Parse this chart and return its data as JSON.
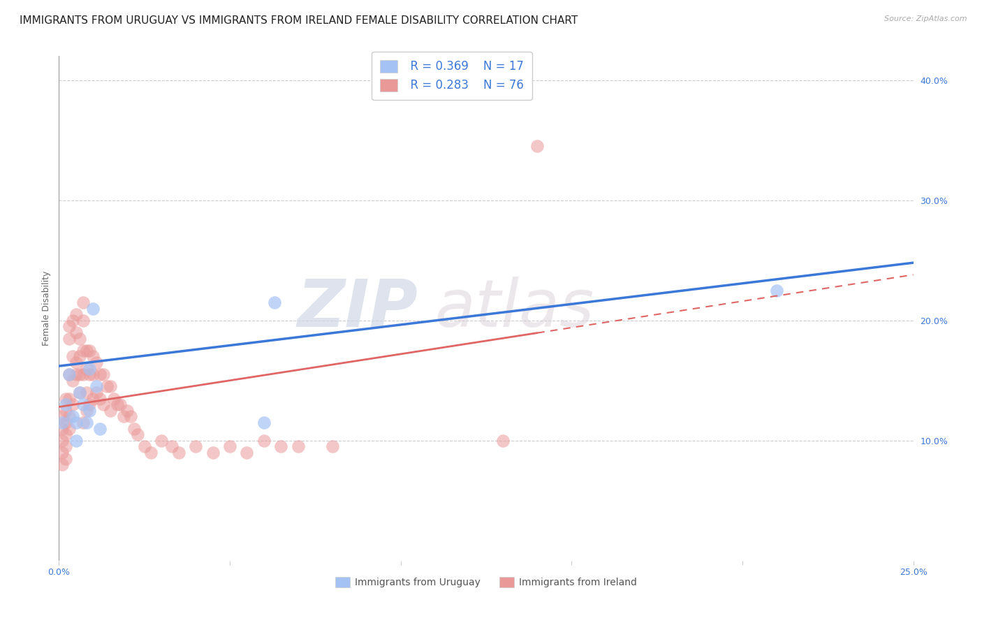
{
  "title": "IMMIGRANTS FROM URUGUAY VS IMMIGRANTS FROM IRELAND FEMALE DISABILITY CORRELATION CHART",
  "source": "Source: ZipAtlas.com",
  "ylabel": "Female Disability",
  "xlim": [
    0.0,
    0.25
  ],
  "ylim": [
    0.0,
    0.42
  ],
  "x_ticks": [
    0.0,
    0.05,
    0.1,
    0.15,
    0.2,
    0.25
  ],
  "x_tick_labels": [
    "0.0%",
    "",
    "",
    "",
    "",
    "25.0%"
  ],
  "y_ticks_right": [
    0.1,
    0.2,
    0.3,
    0.4
  ],
  "y_tick_labels_right": [
    "10.0%",
    "20.0%",
    "30.0%",
    "40.0%"
  ],
  "legend_r1": "R = 0.369",
  "legend_n1": "N = 17",
  "legend_r2": "R = 0.283",
  "legend_n2": "N = 76",
  "color_uruguay": "#a4c2f4",
  "color_ireland": "#ea9999",
  "color_trendline_uruguay": "#3c78d8",
  "color_trendline_ireland": "#e06666",
  "watermark_zip": "ZIP",
  "watermark_atlas": "atlas",
  "background_color": "#ffffff",
  "title_fontsize": 11,
  "axis_label_fontsize": 9,
  "tick_fontsize": 9,
  "uruguay_x": [
    0.001,
    0.002,
    0.003,
    0.004,
    0.005,
    0.005,
    0.006,
    0.007,
    0.008,
    0.009,
    0.009,
    0.01,
    0.011,
    0.012,
    0.06,
    0.063,
    0.21
  ],
  "uruguay_y": [
    0.115,
    0.13,
    0.155,
    0.12,
    0.115,
    0.1,
    0.14,
    0.13,
    0.115,
    0.16,
    0.125,
    0.21,
    0.145,
    0.11,
    0.115,
    0.215,
    0.225
  ],
  "ireland_x": [
    0.001,
    0.001,
    0.001,
    0.001,
    0.001,
    0.002,
    0.002,
    0.002,
    0.002,
    0.002,
    0.002,
    0.003,
    0.003,
    0.003,
    0.003,
    0.003,
    0.003,
    0.004,
    0.004,
    0.004,
    0.004,
    0.005,
    0.005,
    0.005,
    0.005,
    0.006,
    0.006,
    0.006,
    0.006,
    0.007,
    0.007,
    0.007,
    0.007,
    0.007,
    0.008,
    0.008,
    0.008,
    0.008,
    0.009,
    0.009,
    0.009,
    0.01,
    0.01,
    0.01,
    0.011,
    0.011,
    0.012,
    0.012,
    0.013,
    0.013,
    0.014,
    0.015,
    0.015,
    0.016,
    0.017,
    0.018,
    0.019,
    0.02,
    0.021,
    0.022,
    0.023,
    0.025,
    0.027,
    0.03,
    0.033,
    0.035,
    0.04,
    0.045,
    0.05,
    0.055,
    0.06,
    0.065,
    0.07,
    0.08,
    0.13,
    0.14
  ],
  "ireland_y": [
    0.12,
    0.11,
    0.1,
    0.09,
    0.08,
    0.135,
    0.125,
    0.115,
    0.105,
    0.095,
    0.085,
    0.195,
    0.185,
    0.155,
    0.135,
    0.12,
    0.11,
    0.2,
    0.17,
    0.15,
    0.13,
    0.205,
    0.19,
    0.165,
    0.155,
    0.185,
    0.17,
    0.155,
    0.14,
    0.215,
    0.2,
    0.175,
    0.155,
    0.115,
    0.175,
    0.16,
    0.14,
    0.125,
    0.175,
    0.155,
    0.13,
    0.17,
    0.155,
    0.135,
    0.165,
    0.14,
    0.155,
    0.135,
    0.155,
    0.13,
    0.145,
    0.145,
    0.125,
    0.135,
    0.13,
    0.13,
    0.12,
    0.125,
    0.12,
    0.11,
    0.105,
    0.095,
    0.09,
    0.1,
    0.095,
    0.09,
    0.095,
    0.09,
    0.095,
    0.09,
    0.1,
    0.095,
    0.095,
    0.095,
    0.1,
    0.345
  ],
  "trendline_uru_x0": 0.0,
  "trendline_uru_y0": 0.162,
  "trendline_uru_x1": 0.25,
  "trendline_uru_y1": 0.248,
  "trendline_ire_x0": 0.0,
  "trendline_ire_y0": 0.128,
  "trendline_ire_x1": 0.25,
  "trendline_ire_y1": 0.238,
  "trendline_ire_solid_end": 0.14,
  "trendline_ire_dashed_start": 0.14
}
